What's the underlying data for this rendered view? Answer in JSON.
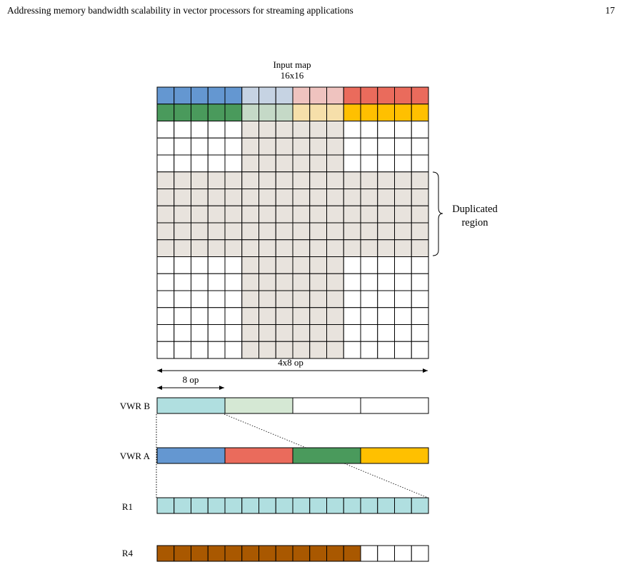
{
  "header": {
    "running_title": "Addressing memory bandwidth scalability in vector processors for streaming applications",
    "page_number": "17"
  },
  "figure": {
    "input_map": {
      "title_line1": "Input map",
      "title_line2": "16x16",
      "rows": 16,
      "cols": 16,
      "row_colors": {
        "0": [
          "#6497d1",
          "#6497d1",
          "#6497d1",
          "#6497d1",
          "#6497d1",
          "#c6d3e3",
          "#c6d3e3",
          "#c6d3e3",
          "#efc3bf",
          "#efc3bf",
          "#efc3bf",
          "#ea6b5c",
          "#ea6b5c",
          "#ea6b5c",
          "#ea6b5c",
          "#ea6b5c"
        ],
        "1": [
          "#4a9a5c",
          "#4a9a5c",
          "#4a9a5c",
          "#4a9a5c",
          "#4a9a5c",
          "#c5d9c7",
          "#c5d9c7",
          "#c5d9c7",
          "#f6dfaa",
          "#f6dfaa",
          "#f6dfaa",
          "#ffc000",
          "#ffc000",
          "#ffc000",
          "#ffc000",
          "#ffc000"
        ]
      },
      "shaded_color": "#e8e3dd",
      "shaded_column_range": [
        5,
        10
      ],
      "shaded_row_range": [
        5,
        9
      ]
    },
    "duplicated_region_label": [
      "Duplicated",
      "region"
    ],
    "dimension_4x8": "4x8 op",
    "dimension_8": "8 op",
    "vwr_b": {
      "label": "VWR B",
      "segments": [
        "#b0dfe0",
        "#d5e8d4",
        "#ffffff",
        "#ffffff"
      ]
    },
    "vwr_a": {
      "label": "VWR A",
      "segments": [
        "#6497d1",
        "#ea6b5c",
        "#4a9a5c",
        "#ffc000"
      ]
    },
    "r1": {
      "label": "R1",
      "cells": 16,
      "filled": 16,
      "color": "#b0dfe0"
    },
    "r4": {
      "label": "R4",
      "cells": 16,
      "filled": 12,
      "color": "#a95800"
    }
  }
}
